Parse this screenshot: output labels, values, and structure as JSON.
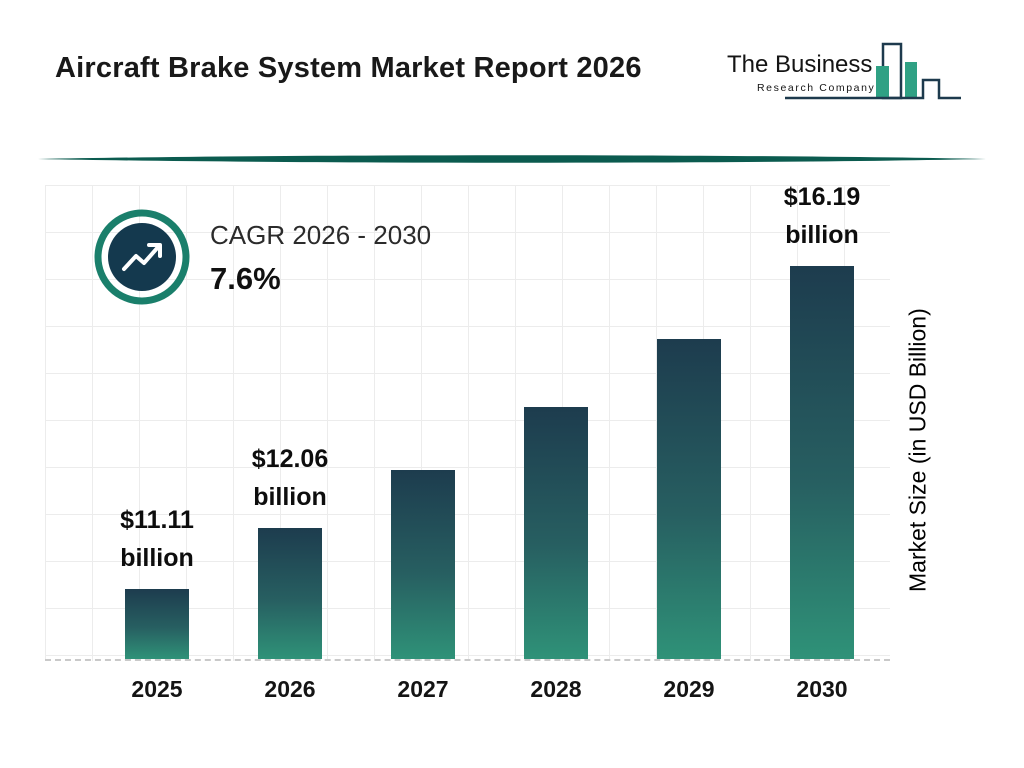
{
  "header": {
    "title": "Aircraft Brake System Market Report 2026",
    "logo": {
      "name": "The Business",
      "subname": "Research Company"
    }
  },
  "cagr": {
    "label": "CAGR 2026 - 2030",
    "value": "7.6%"
  },
  "chart_data": {
    "type": "bar",
    "title": "Aircraft Brake System Market Report 2026",
    "categories": [
      "2025",
      "2026",
      "2027",
      "2028",
      "2029",
      "2030"
    ],
    "values": [
      11.11,
      12.06,
      12.98,
      13.97,
      15.04,
      16.19
    ],
    "unlabeled_values_estimated": true,
    "bar_labels": [
      {
        "amount": "$11.11",
        "unit": "billion"
      },
      {
        "amount": "$12.06",
        "unit": "billion"
      },
      null,
      null,
      null,
      {
        "amount": "$16.19",
        "unit": "billion"
      }
    ],
    "xlabel": "",
    "ylabel": "Market Size (in USD Billion)",
    "ylim": [
      10,
      17.5
    ],
    "grid": true,
    "legend": false
  },
  "colors": {
    "accent_divider": "#0b5b4f",
    "badge_ring": "#1a7f6b",
    "badge_fill": "#14394e",
    "bar_top": "#1d3c4e",
    "bar_bottom": "#2f9278",
    "logo_outline": "#1d3a4d",
    "logo_teal": "#2fa184"
  }
}
